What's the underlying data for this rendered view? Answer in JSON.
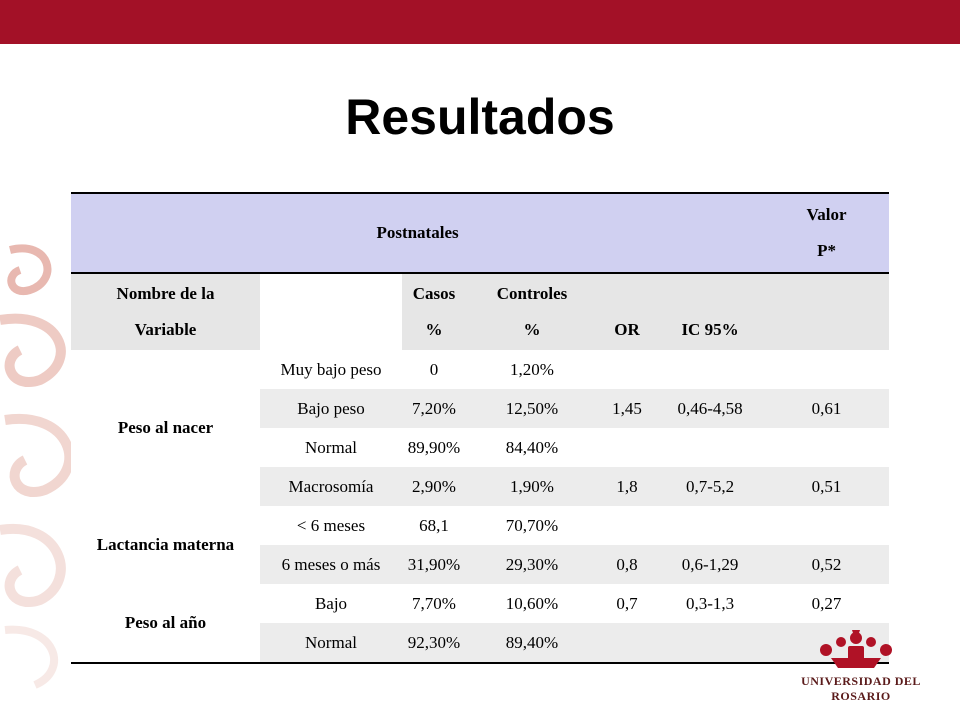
{
  "slide": {
    "title": "Resultados"
  },
  "colors": {
    "topbar": "#a31127",
    "header_row": "#d0d0f1",
    "subheader_row": "#e6e6e6",
    "stripe": "#ececec"
  },
  "table": {
    "header": {
      "postnatales": "Postnatales",
      "valor_line1": "Valor",
      "valor_line2": "P*"
    },
    "subheader": {
      "variable_line1": "Nombre de la",
      "variable_line2": "Variable",
      "casos_line1": "Casos",
      "casos_line2": "%",
      "controles_line1": "Controles",
      "controles_line2": "%",
      "or": "OR",
      "ic": "IC 95%"
    },
    "groups": [
      "Peso al nacer",
      "Lactancia materna",
      "Peso al año"
    ],
    "rows": [
      {
        "category": "Muy bajo peso",
        "casos": "0",
        "controles": "1,20%",
        "or": "",
        "ic": "",
        "p": ""
      },
      {
        "category": "Bajo peso",
        "casos": "7,20%",
        "controles": "12,50%",
        "or": "1,45",
        "ic": "0,46-4,58",
        "p": "0,61"
      },
      {
        "category": "Normal",
        "casos": "89,90%",
        "controles": "84,40%",
        "or": "",
        "ic": "",
        "p": ""
      },
      {
        "category": "Macrosomía",
        "casos": "2,90%",
        "controles": "1,90%",
        "or": "1,8",
        "ic": "0,7-5,2",
        "p": "0,51"
      },
      {
        "category": "< 6 meses",
        "casos": "68,1",
        "controles": "70,70%",
        "or": "",
        "ic": "",
        "p": ""
      },
      {
        "category": "6 meses o más",
        "casos": "31,90%",
        "controles": "29,30%",
        "or": "0,8",
        "ic": "0,6-1,29",
        "p": "0,52"
      },
      {
        "category": "Bajo",
        "casos": "7,70%",
        "controles": "10,60%",
        "or": "0,7",
        "ic": "0,3-1,3",
        "p": "0,27"
      },
      {
        "category": "Normal",
        "casos": "92,30%",
        "controles": "89,40%",
        "or": "",
        "ic": "",
        "p": ""
      }
    ]
  },
  "logo": {
    "text": "UNIVERSIDAD DEL ROSARIO"
  }
}
